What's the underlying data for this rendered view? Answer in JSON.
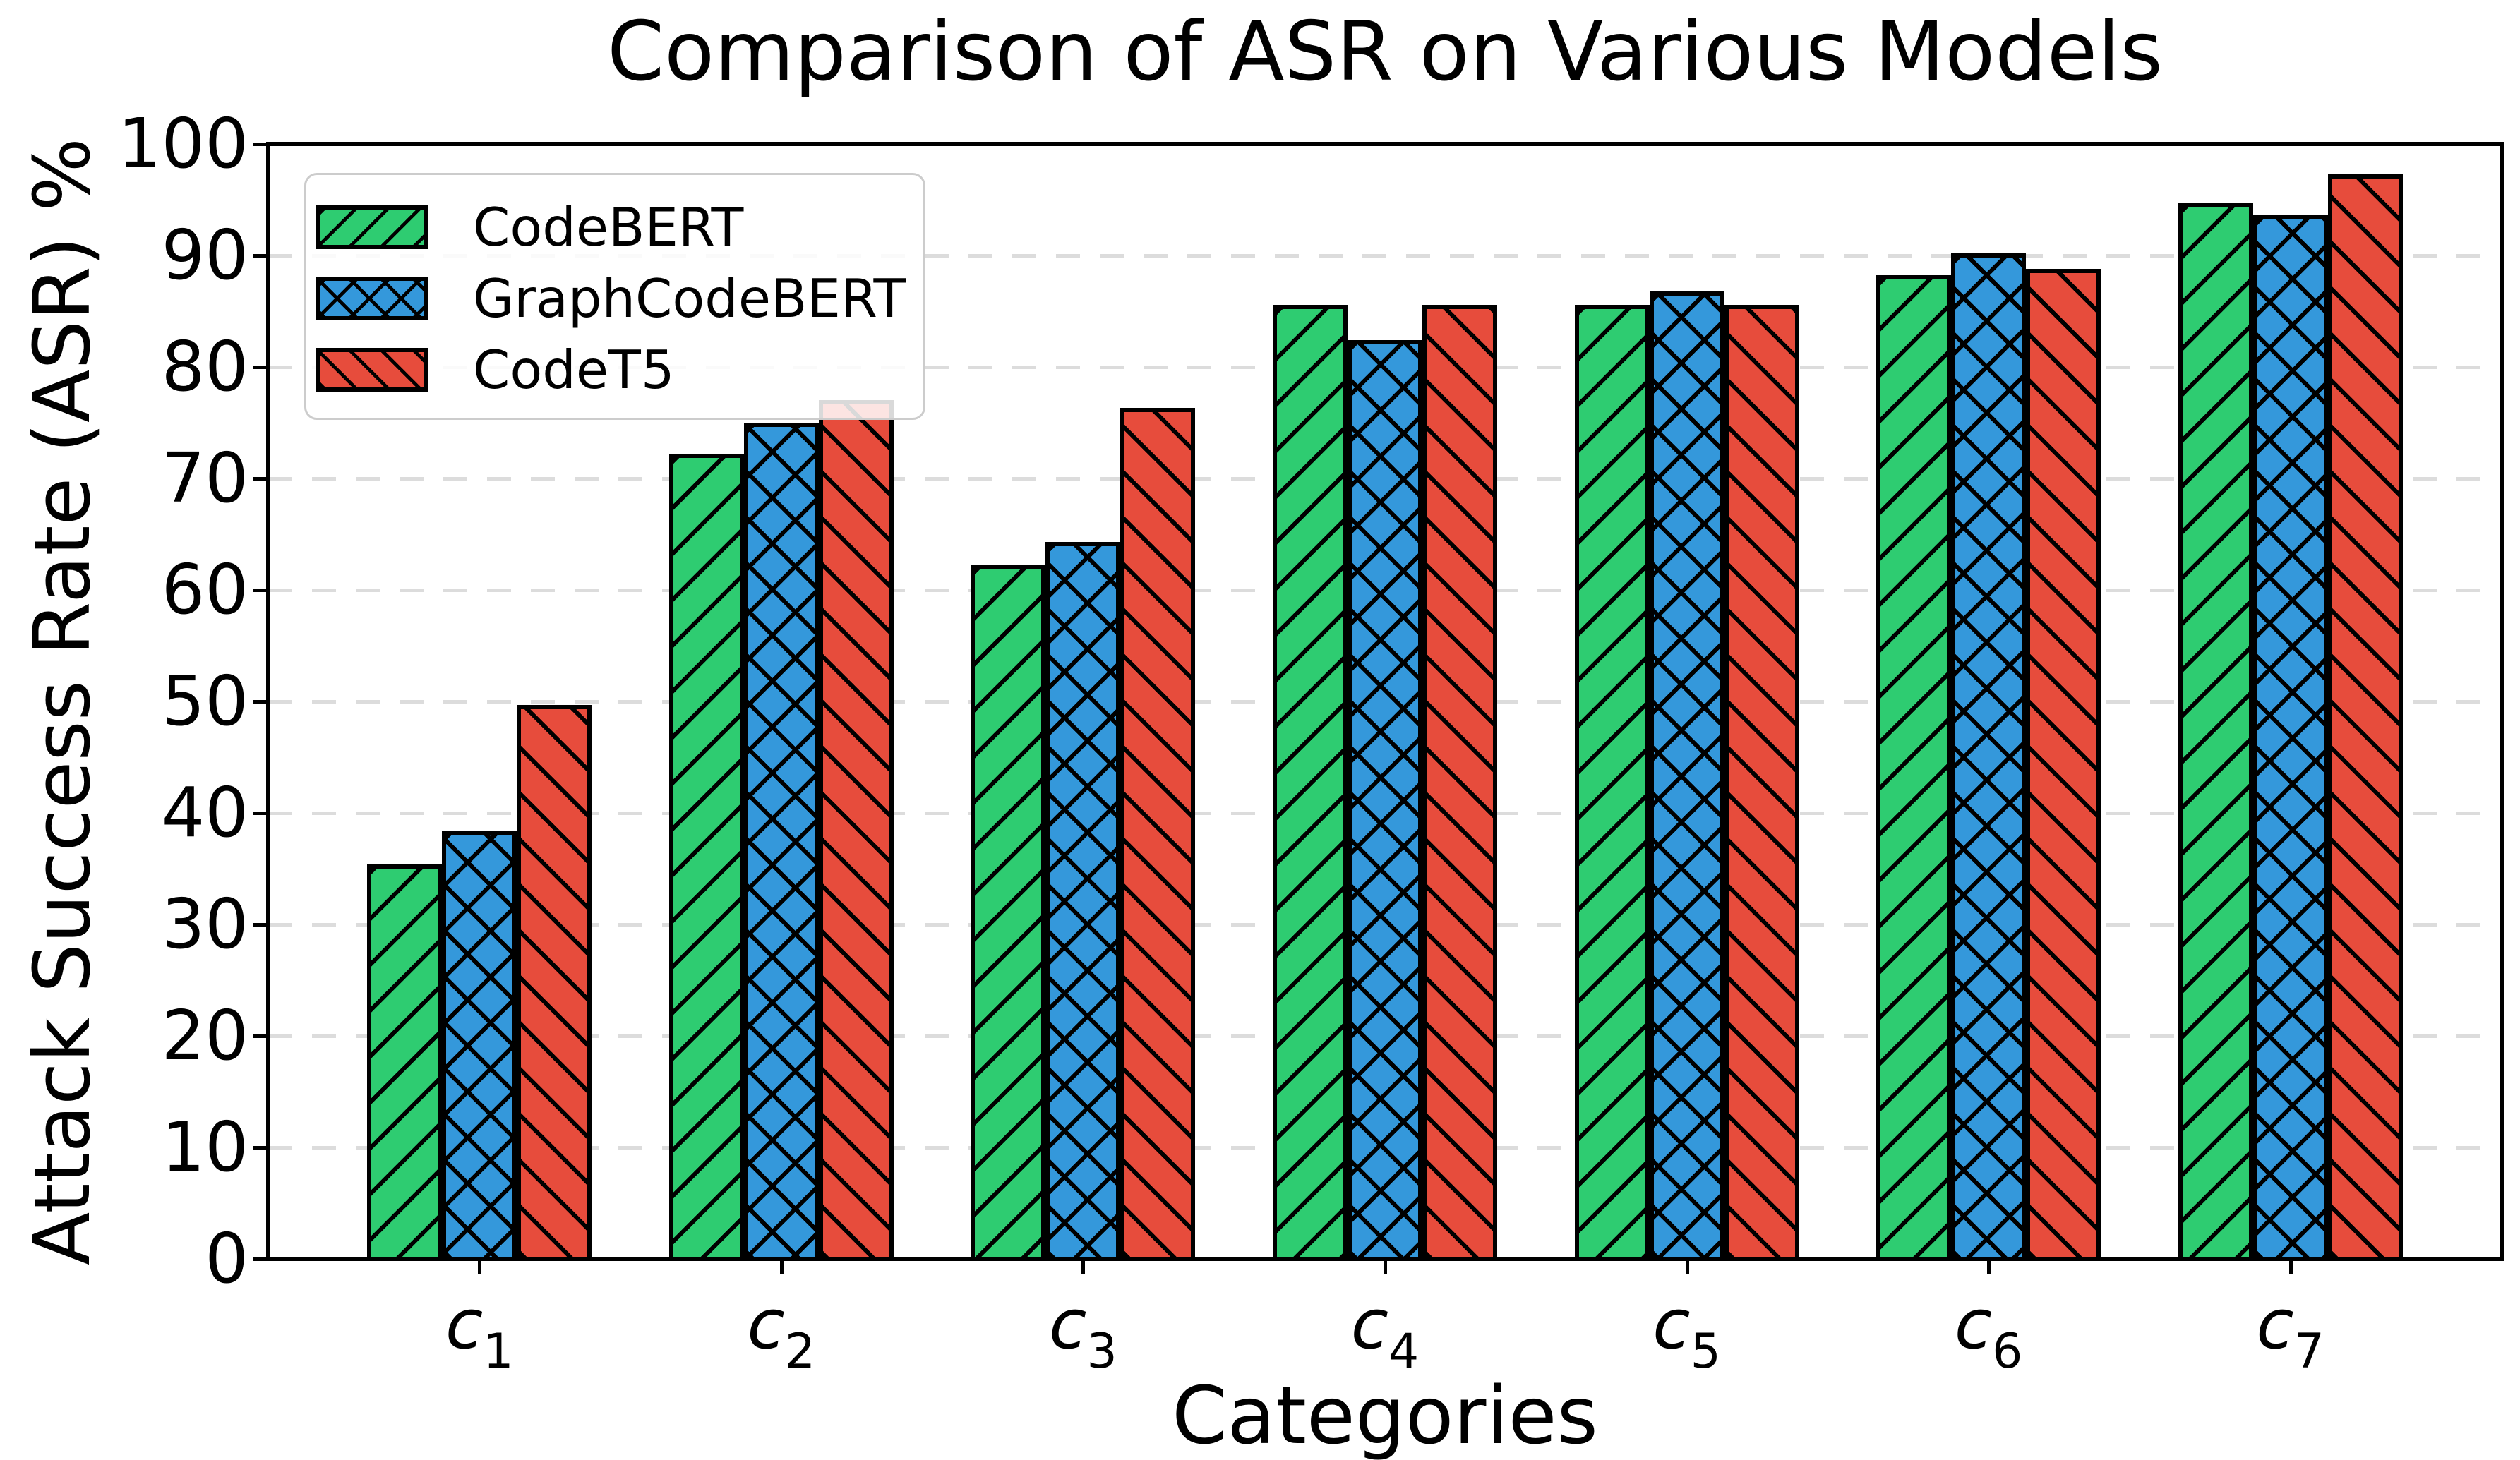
{
  "title": "Comparison of ASR on Various Models",
  "axes": {
    "ylabel": "Attack Success Rate (ASR) %",
    "xlabel": "Categories",
    "yticks": [
      0,
      10,
      20,
      30,
      40,
      50,
      60,
      70,
      80,
      90,
      100
    ],
    "ylim": [
      0,
      100
    ],
    "grid": "horizontal-dashed",
    "gridline_color": "#dcdcdc"
  },
  "legend": {
    "position": "upper-left",
    "border_color": "#cccccc",
    "background": "rgba(255,255,255,0.85)"
  },
  "chart_data": {
    "type": "bar",
    "categories": [
      {
        "base": "c",
        "sub": "1"
      },
      {
        "base": "c",
        "sub": "2"
      },
      {
        "base": "c",
        "sub": "3"
      },
      {
        "base": "c",
        "sub": "4"
      },
      {
        "base": "c",
        "sub": "5"
      },
      {
        "base": "c",
        "sub": "6"
      },
      {
        "base": "c",
        "sub": "7"
      }
    ],
    "series": [
      {
        "name": "CodeBERT",
        "color": "#2ecc71",
        "hatch": "//",
        "values": [
          35.4,
          72.2,
          62.3,
          85.6,
          85.6,
          88.2,
          94.7
        ]
      },
      {
        "name": "GraphCodeBERT",
        "color": "#3498db",
        "hatch": "xx",
        "values": [
          38.4,
          75.0,
          64.3,
          82.4,
          86.8,
          90.2,
          93.6
        ]
      },
      {
        "name": "CodeT5",
        "color": "#e74c3c",
        "hatch": "\\\\",
        "values": [
          49.7,
          77.0,
          76.3,
          85.6,
          85.6,
          88.8,
          97.3
        ]
      }
    ],
    "title": "Comparison of ASR on Various Models",
    "xlabel": "Categories",
    "ylabel": "Attack Success Rate (ASR) %",
    "ylim": [
      0,
      100
    ]
  }
}
